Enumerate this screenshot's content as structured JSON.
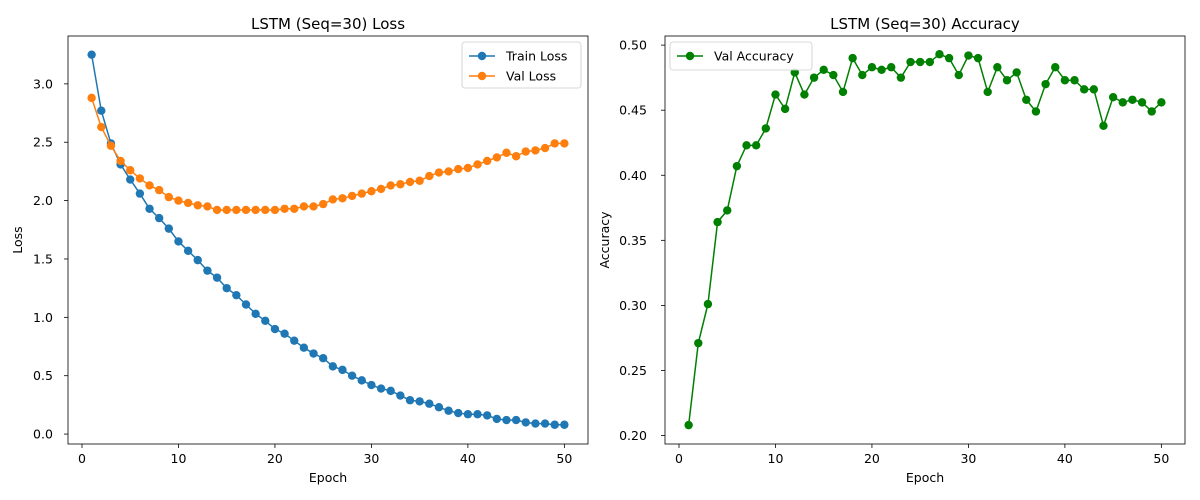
{
  "chart_data": [
    {
      "type": "line",
      "title": "LSTM (Seq=30) Loss",
      "xlabel": "Epoch",
      "ylabel": "Loss",
      "xlim": [
        -1.45,
        52.45
      ],
      "ylim": [
        -0.085,
        3.41
      ],
      "xticks": [
        0,
        10,
        20,
        30,
        40,
        50
      ],
      "yticks": [
        0.0,
        0.5,
        1.0,
        1.5,
        2.0,
        2.5,
        3.0
      ],
      "ytick_labels": [
        "0.0",
        "0.5",
        "1.0",
        "1.5",
        "2.0",
        "2.5",
        "3.0"
      ],
      "legend": "top-right",
      "grid": false,
      "x": [
        1,
        2,
        3,
        4,
        5,
        6,
        7,
        8,
        9,
        10,
        11,
        12,
        13,
        14,
        15,
        16,
        17,
        18,
        19,
        20,
        21,
        22,
        23,
        24,
        25,
        26,
        27,
        28,
        29,
        30,
        31,
        32,
        33,
        34,
        35,
        36,
        37,
        38,
        39,
        40,
        41,
        42,
        43,
        44,
        45,
        46,
        47,
        48,
        49,
        50
      ],
      "series": [
        {
          "name": "Train Loss",
          "color": "#1f77b4",
          "values": [
            3.25,
            2.77,
            2.49,
            2.31,
            2.18,
            2.06,
            1.93,
            1.85,
            1.76,
            1.65,
            1.57,
            1.49,
            1.4,
            1.34,
            1.25,
            1.19,
            1.11,
            1.03,
            0.97,
            0.9,
            0.86,
            0.8,
            0.74,
            0.69,
            0.65,
            0.58,
            0.55,
            0.5,
            0.46,
            0.42,
            0.39,
            0.37,
            0.33,
            0.29,
            0.28,
            0.26,
            0.23,
            0.2,
            0.18,
            0.17,
            0.17,
            0.16,
            0.13,
            0.12,
            0.12,
            0.1,
            0.09,
            0.09,
            0.08,
            0.08
          ]
        },
        {
          "name": "Val Loss",
          "color": "#ff7f0e",
          "values": [
            2.88,
            2.63,
            2.47,
            2.34,
            2.26,
            2.19,
            2.13,
            2.09,
            2.03,
            2.0,
            1.98,
            1.96,
            1.95,
            1.92,
            1.92,
            1.92,
            1.92,
            1.92,
            1.92,
            1.92,
            1.93,
            1.93,
            1.95,
            1.95,
            1.97,
            2.01,
            2.02,
            2.04,
            2.06,
            2.08,
            2.1,
            2.13,
            2.14,
            2.16,
            2.17,
            2.21,
            2.24,
            2.25,
            2.27,
            2.28,
            2.31,
            2.34,
            2.37,
            2.41,
            2.38,
            2.42,
            2.43,
            2.45,
            2.49,
            2.49
          ]
        }
      ]
    },
    {
      "type": "line",
      "title": "LSTM (Seq=30) Accuracy",
      "xlabel": "Epoch",
      "ylabel": "Accuracy",
      "xlim": [
        -1.45,
        52.45
      ],
      "ylim": [
        0.1935,
        0.507
      ],
      "xticks": [
        0,
        10,
        20,
        30,
        40,
        50
      ],
      "yticks": [
        0.2,
        0.25,
        0.3,
        0.35,
        0.4,
        0.45,
        0.5
      ],
      "ytick_labels": [
        "0.20",
        "0.25",
        "0.30",
        "0.35",
        "0.40",
        "0.45",
        "0.50"
      ],
      "legend": "top-left",
      "grid": false,
      "x": [
        1,
        2,
        3,
        4,
        5,
        6,
        7,
        8,
        9,
        10,
        11,
        12,
        13,
        14,
        15,
        16,
        17,
        18,
        19,
        20,
        21,
        22,
        23,
        24,
        25,
        26,
        27,
        28,
        29,
        30,
        31,
        32,
        33,
        34,
        35,
        36,
        37,
        38,
        39,
        40,
        41,
        42,
        43,
        44,
        45,
        46,
        47,
        48,
        49,
        50
      ],
      "series": [
        {
          "name": "Val Accuracy",
          "color": "#008000",
          "values": [
            0.208,
            0.271,
            0.301,
            0.364,
            0.373,
            0.407,
            0.423,
            0.423,
            0.436,
            0.462,
            0.451,
            0.479,
            0.462,
            0.475,
            0.481,
            0.477,
            0.464,
            0.49,
            0.477,
            0.483,
            0.481,
            0.483,
            0.475,
            0.487,
            0.487,
            0.487,
            0.493,
            0.49,
            0.477,
            0.492,
            0.49,
            0.464,
            0.483,
            0.473,
            0.479,
            0.458,
            0.449,
            0.47,
            0.483,
            0.473,
            0.473,
            0.466,
            0.466,
            0.438,
            0.46,
            0.456,
            0.458,
            0.456,
            0.449,
            0.456
          ]
        }
      ]
    }
  ]
}
